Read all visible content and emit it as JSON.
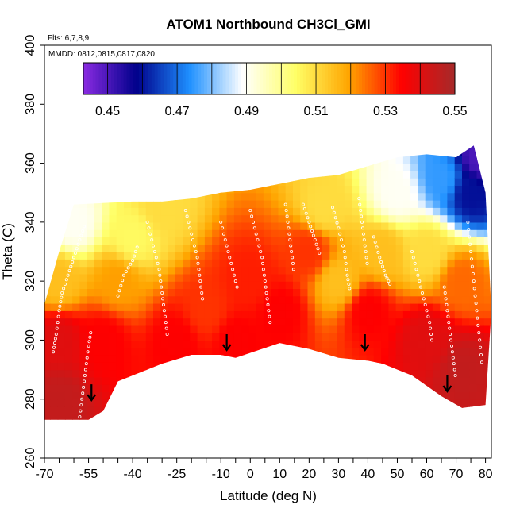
{
  "chart_data": {
    "type": "heatmap",
    "title": "ATOM1 Northbound CH3Cl_GMI",
    "annotations": {
      "flights": "Flts: 6,7,8,9",
      "dates": "MMDD: 0812,0815,0817,0820"
    },
    "xlabel": "Latitude (deg N)",
    "ylabel": "Theta (C)",
    "xlim": [
      -70,
      82
    ],
    "ylim": [
      260,
      400
    ],
    "x_ticks": [
      -70,
      -55,
      -40,
      -25,
      -10,
      0,
      10,
      20,
      30,
      40,
      50,
      60,
      70,
      80
    ],
    "x_tick_labels": [
      "-70",
      "-55",
      "-40",
      "-25",
      "-10",
      "0",
      "10",
      "20",
      "30",
      "40",
      "50",
      "60",
      "70",
      "80"
    ],
    "y_ticks": [
      260,
      280,
      300,
      320,
      340,
      360,
      380,
      400
    ],
    "y_tick_labels": [
      "260",
      "280",
      "300",
      "320",
      "340",
      "360",
      "380",
      "400"
    ],
    "colorbar": {
      "ticks": [
        0.45,
        0.47,
        0.49,
        0.51,
        0.53,
        0.55
      ],
      "tick_labels": [
        "0.45",
        "0.47",
        "0.49",
        "0.51",
        "0.53",
        "0.55"
      ],
      "range": [
        0.443,
        0.55
      ],
      "boundaries": [
        0.45,
        0.46,
        0.47,
        0.48,
        0.49,
        0.5,
        0.51,
        0.52,
        0.53,
        0.54
      ],
      "stops": [
        "#8a2be2",
        "#00008b",
        "#1e90ff",
        "#ffffff",
        "#ffff66",
        "#ffa500",
        "#ff0000",
        "#a52a2a"
      ]
    },
    "surface_lower_boundary": [
      [
        -72,
        273
      ],
      [
        -55,
        273
      ],
      [
        -50,
        276
      ],
      [
        -45,
        286
      ],
      [
        -30,
        292
      ],
      [
        -20,
        295
      ],
      [
        -10,
        295
      ],
      [
        -5,
        294
      ],
      [
        10,
        299
      ],
      [
        20,
        297
      ],
      [
        30,
        294
      ],
      [
        40,
        293
      ],
      [
        45,
        292
      ],
      [
        55,
        288
      ],
      [
        65,
        281
      ],
      [
        72,
        277
      ],
      [
        80,
        278
      ]
    ],
    "surface_upper_boundary": [
      [
        -72,
        305
      ],
      [
        -65,
        330
      ],
      [
        -60,
        346
      ],
      [
        -40,
        347
      ],
      [
        -30,
        347
      ],
      [
        -20,
        348
      ],
      [
        -10,
        350
      ],
      [
        0,
        351
      ],
      [
        10,
        353
      ],
      [
        20,
        355
      ],
      [
        30,
        356
      ],
      [
        40,
        359
      ],
      [
        50,
        362
      ],
      [
        60,
        363
      ],
      [
        70,
        362
      ],
      [
        76,
        366
      ],
      [
        80,
        350
      ],
      [
        82,
        310
      ],
      [
        80,
        278
      ]
    ],
    "field_samples": [
      {
        "lat": -65,
        "theta": 280,
        "value": 0.545
      },
      {
        "lat": -65,
        "theta": 300,
        "value": 0.54
      },
      {
        "lat": -65,
        "theta": 320,
        "value": 0.515
      },
      {
        "lat": -60,
        "theta": 340,
        "value": 0.49
      },
      {
        "lat": -50,
        "theta": 300,
        "value": 0.535
      },
      {
        "lat": -45,
        "theta": 320,
        "value": 0.52
      },
      {
        "lat": -40,
        "theta": 335,
        "value": 0.505
      },
      {
        "lat": -30,
        "theta": 345,
        "value": 0.51
      },
      {
        "lat": -25,
        "theta": 300,
        "value": 0.535
      },
      {
        "lat": -15,
        "theta": 310,
        "value": 0.53
      },
      {
        "lat": -5,
        "theta": 300,
        "value": 0.535
      },
      {
        "lat": 0,
        "theta": 320,
        "value": 0.532
      },
      {
        "lat": 10,
        "theta": 310,
        "value": 0.535
      },
      {
        "lat": 20,
        "theta": 330,
        "value": 0.53
      },
      {
        "lat": 25,
        "theta": 345,
        "value": 0.51
      },
      {
        "lat": 30,
        "theta": 320,
        "value": 0.515
      },
      {
        "lat": 40,
        "theta": 310,
        "value": 0.535
      },
      {
        "lat": 45,
        "theta": 330,
        "value": 0.515
      },
      {
        "lat": 50,
        "theta": 350,
        "value": 0.49
      },
      {
        "lat": 60,
        "theta": 300,
        "value": 0.54
      },
      {
        "lat": 60,
        "theta": 330,
        "value": 0.51
      },
      {
        "lat": 65,
        "theta": 355,
        "value": 0.475
      },
      {
        "lat": 72,
        "theta": 290,
        "value": 0.545
      },
      {
        "lat": 72,
        "theta": 320,
        "value": 0.525
      },
      {
        "lat": 75,
        "theta": 350,
        "value": 0.46
      },
      {
        "lat": 78,
        "theta": 362,
        "value": 0.45
      }
    ],
    "flight_tracks": [
      [
        [
          -67,
          296
        ],
        [
          -66,
          302
        ],
        [
          -65,
          310
        ],
        [
          -64,
          316
        ],
        [
          -62,
          322
        ],
        [
          -60,
          328
        ],
        [
          -58,
          334
        ],
        [
          -56,
          340
        ]
      ],
      [
        [
          -58,
          274
        ],
        [
          -57,
          282
        ],
        [
          -56,
          290
        ],
        [
          -55,
          298
        ],
        [
          -54,
          304
        ]
      ],
      [
        [
          -45,
          315
        ],
        [
          -43,
          322
        ],
        [
          -40,
          327
        ],
        [
          -38,
          333
        ]
      ],
      [
        [
          -35,
          340
        ],
        [
          -33,
          332
        ],
        [
          -31,
          324
        ],
        [
          -30,
          316
        ],
        [
          -29,
          308
        ],
        [
          -28,
          300
        ]
      ],
      [
        [
          -22,
          344
        ],
        [
          -20,
          336
        ],
        [
          -18,
          328
        ],
        [
          -17,
          320
        ],
        [
          -16,
          312
        ]
      ],
      [
        [
          -10,
          340
        ],
        [
          -8,
          332
        ],
        [
          -6,
          324
        ],
        [
          -4,
          316
        ]
      ],
      [
        [
          0,
          344
        ],
        [
          2,
          336
        ],
        [
          4,
          328
        ],
        [
          5,
          320
        ],
        [
          6,
          312
        ],
        [
          7,
          304
        ]
      ],
      [
        [
          12,
          346
        ],
        [
          13,
          338
        ],
        [
          14,
          330
        ],
        [
          15,
          322
        ]
      ],
      [
        [
          18,
          346
        ],
        [
          20,
          340
        ],
        [
          22,
          334
        ],
        [
          24,
          328
        ]
      ],
      [
        [
          28,
          345
        ],
        [
          30,
          338
        ],
        [
          32,
          330
        ],
        [
          33,
          322
        ],
        [
          34,
          316
        ]
      ],
      [
        [
          37,
          348
        ],
        [
          38,
          340
        ],
        [
          39,
          332
        ],
        [
          40,
          324
        ]
      ],
      [
        [
          42,
          335
        ],
        [
          44,
          328
        ],
        [
          46,
          322
        ],
        [
          48,
          318
        ]
      ],
      [
        [
          55,
          330
        ],
        [
          57,
          322
        ],
        [
          59,
          314
        ],
        [
          61,
          306
        ],
        [
          62,
          298
        ]
      ],
      [
        [
          66,
          318
        ],
        [
          67,
          310
        ],
        [
          68,
          302
        ],
        [
          69,
          294
        ],
        [
          70,
          286
        ]
      ],
      [
        [
          74,
          340
        ],
        [
          75,
          330
        ],
        [
          76,
          320
        ],
        [
          77,
          310
        ],
        [
          78,
          300
        ],
        [
          79,
          290
        ]
      ]
    ],
    "arrows": [
      [
        -54,
        285
      ],
      [
        -8,
        302
      ],
      [
        39,
        302
      ],
      [
        67,
        288
      ]
    ]
  }
}
